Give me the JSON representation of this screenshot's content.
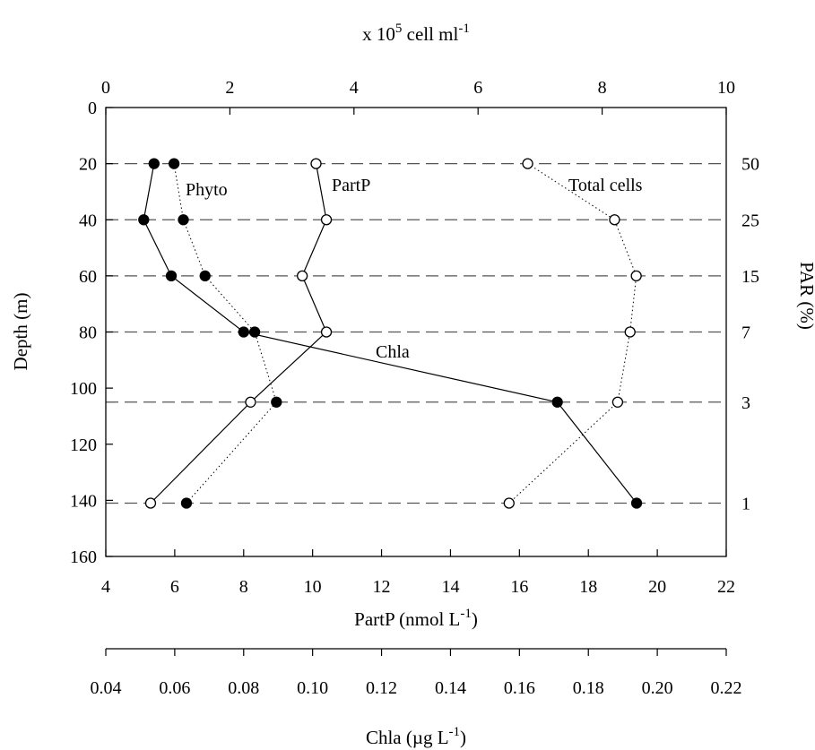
{
  "chart_data": {
    "type": "scatter",
    "axes": {
      "y_left": {
        "title": "Depth (m)",
        "range": [
          0,
          160
        ],
        "inverted": true,
        "ticks": [
          "0",
          "20",
          "40",
          "60",
          "80",
          "100",
          "120",
          "140",
          "160"
        ]
      },
      "x_bottom": {
        "title_main": "PartP (nmol L",
        "title_sup": "-1",
        "title_end": ")",
        "range": [
          4,
          22
        ],
        "ticks": [
          "4",
          "6",
          "8",
          "10",
          "12",
          "14",
          "16",
          "18",
          "20",
          "22"
        ]
      },
      "x_chla": {
        "title_main": "Chla (µg L",
        "title_sup": "-1",
        "title_end": ")",
        "range": [
          0.04,
          0.22
        ],
        "ticks": [
          "0.04",
          "0.06",
          "0.08",
          "0.10",
          "0.12",
          "0.14",
          "0.16",
          "0.18",
          "0.20",
          "0.22"
        ]
      },
      "x_top": {
        "title_main": "x 10",
        "title_sup1": "5",
        "title_mid": " cell ml",
        "title_sup2": "-1",
        "range": [
          0,
          10
        ],
        "ticks": [
          "0",
          "2",
          "4",
          "6",
          "8",
          "10"
        ]
      },
      "y_right": {
        "title": "PAR (%)",
        "labels": [
          {
            "depth": 20,
            "text": "50"
          },
          {
            "depth": 40,
            "text": "25"
          },
          {
            "depth": 60,
            "text": "15"
          },
          {
            "depth": 80,
            "text": "7"
          },
          {
            "depth": 105,
            "text": "3"
          },
          {
            "depth": 141,
            "text": "1"
          }
        ]
      }
    },
    "reference_depths": [
      20,
      40,
      60,
      80,
      105,
      141
    ],
    "series": [
      {
        "name": "Phyto",
        "axis": "top",
        "marker": "filled",
        "line": "dotted",
        "points": [
          {
            "x": 1.1,
            "depth": 20
          },
          {
            "x": 1.25,
            "depth": 40
          },
          {
            "x": 1.6,
            "depth": 60
          },
          {
            "x": 2.4,
            "depth": 80
          },
          {
            "x": 2.75,
            "depth": 105
          },
          {
            "x": 1.3,
            "depth": 141
          }
        ]
      },
      {
        "name": "Chla",
        "axis": "chla",
        "marker": "filled",
        "line": "solid",
        "points": [
          {
            "x": 0.054,
            "depth": 20
          },
          {
            "x": 0.051,
            "depth": 40
          },
          {
            "x": 0.059,
            "depth": 60
          },
          {
            "x": 0.08,
            "depth": 80
          },
          {
            "x": 0.171,
            "depth": 105
          },
          {
            "x": 0.194,
            "depth": 141
          }
        ]
      },
      {
        "name": "PartP",
        "axis": "bottom",
        "marker": "open",
        "line": "solid",
        "points": [
          {
            "x": 10.1,
            "depth": 20
          },
          {
            "x": 10.4,
            "depth": 40
          },
          {
            "x": 9.7,
            "depth": 60
          },
          {
            "x": 10.4,
            "depth": 80
          },
          {
            "x": 8.2,
            "depth": 105
          },
          {
            "x": 5.3,
            "depth": 141
          }
        ]
      },
      {
        "name": "Total cells",
        "axis": "top",
        "marker": "open",
        "line": "dotted",
        "points": [
          {
            "x": 6.8,
            "depth": 20
          },
          {
            "x": 8.2,
            "depth": 40
          },
          {
            "x": 8.55,
            "depth": 60
          },
          {
            "x": 8.45,
            "depth": 80
          },
          {
            "x": 8.25,
            "depth": 105
          },
          {
            "x": 6.5,
            "depth": 141
          }
        ]
      }
    ],
    "annotations": [
      "Phyto",
      "PartP",
      "Total cells",
      "Chla"
    ]
  }
}
